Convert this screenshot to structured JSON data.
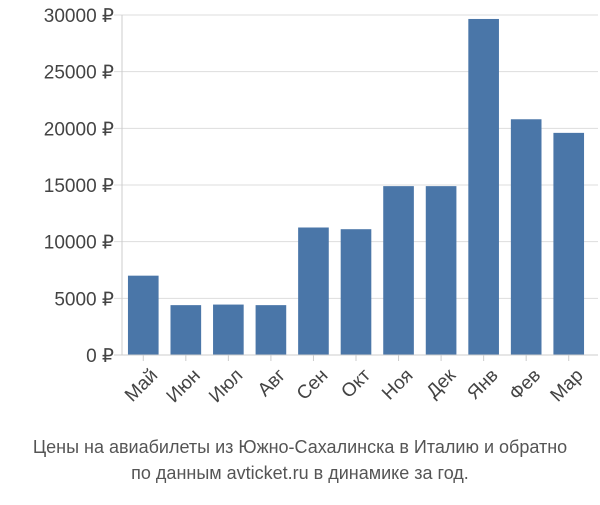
{
  "chart_data": {
    "type": "bar",
    "categories": [
      "Май",
      "Июн",
      "Июл",
      "Авг",
      "Сен",
      "Окт",
      "Ноя",
      "Дек",
      "Янв",
      "Фев",
      "Мар"
    ],
    "values": [
      7000,
      4400,
      4450,
      4400,
      11250,
      11100,
      14900,
      14900,
      29650,
      20800,
      19600
    ],
    "ylim": [
      0,
      30000
    ],
    "yticks": [
      0,
      5000,
      10000,
      15000,
      20000,
      25000,
      30000
    ],
    "ytick_labels": [
      "0 ₽",
      "5000 ₽",
      "10000 ₽",
      "15000 ₽",
      "20000 ₽",
      "25000 ₽",
      "30000 ₽"
    ],
    "bar_color": "#4a76a8",
    "grid": true,
    "caption_line1": "Цены на авиабилеты из Южно-Сахалинска в Италию и обратно",
    "caption_line2": "по данным avticket.ru в динамике за год."
  }
}
